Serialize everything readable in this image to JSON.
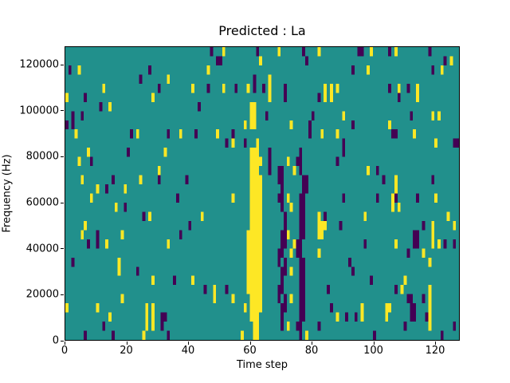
{
  "figure": {
    "background": "#ffffff"
  },
  "chart_data": {
    "type": "heatmap",
    "title": "Predicted : La",
    "xlabel": "Time step",
    "ylabel": "Frequency (Hz)",
    "x_ticks": [
      0,
      20,
      40,
      60,
      80,
      100,
      120
    ],
    "y_ticks": [
      0,
      20000,
      40000,
      60000,
      80000,
      100000,
      120000
    ],
    "x_range": [
      0,
      128
    ],
    "y_range": [
      0,
      128000
    ],
    "grid_cols": 128,
    "grid_rows": 32,
    "legend": "none",
    "grid_lines": false,
    "colors": {
      "background_value": "#21908c",
      "positive_value": "#fde725",
      "negative_value": "#440154",
      "axis": "#000000"
    },
    "yellow_cells_by_row_from_top": [
      [
        51,
        69,
        82,
        99,
        107
      ],
      [
        63,
        125
      ],
      [
        4,
        46,
        98,
        122
      ],
      [
        33,
        66
      ],
      [
        12,
        41,
        51,
        59,
        66,
        84,
        86,
        88,
        108,
        114
      ],
      [
        0,
        28,
        66,
        84,
        86,
        114
      ],
      [
        14,
        60,
        61
      ],
      [
        60,
        61,
        90,
        119,
        121
      ],
      [
        58,
        60,
        61,
        73,
        105
      ],
      [
        3,
        23,
        37,
        49,
        83,
        88,
        113
      ],
      [
        54,
        62,
        120
      ],
      [
        7,
        32,
        60,
        61,
        62
      ],
      [
        4,
        60,
        61,
        62,
        63,
        72
      ],
      [
        30,
        60,
        61,
        62,
        74,
        98
      ],
      [
        5,
        24,
        60,
        61,
        62,
        63,
        107
      ],
      [
        10,
        19,
        60,
        61,
        62,
        63,
        107
      ],
      [
        8,
        54,
        60,
        61,
        62,
        63,
        72,
        106,
        120
      ],
      [
        16,
        60,
        61,
        62,
        63,
        73,
        106,
        108
      ],
      [
        27,
        44,
        60,
        61,
        62,
        63,
        82,
        97,
        124
      ],
      [
        6,
        60,
        61,
        62,
        63,
        82,
        83,
        84,
        119,
        126
      ],
      [
        5,
        18,
        59,
        60,
        61,
        62,
        63,
        72,
        82,
        83,
        119
      ],
      [
        13,
        33,
        59,
        60,
        61,
        62,
        63,
        74,
        107,
        119,
        121
      ],
      [
        59,
        60,
        61,
        62,
        63,
        73,
        82,
        116
      ],
      [
        17,
        59,
        60,
        61,
        62,
        63,
        118
      ],
      [
        17,
        59,
        60,
        61,
        62,
        63,
        73
      ],
      [
        28,
        41,
        59,
        60,
        61,
        62,
        63,
        110
      ],
      [
        48,
        59,
        60,
        61,
        62,
        63,
        109,
        118
      ],
      [
        18,
        48,
        54,
        60,
        61,
        62,
        63,
        73,
        118
      ],
      [
        0,
        10,
        26,
        28,
        58,
        60,
        61,
        62,
        63,
        96,
        104,
        105,
        118
      ],
      [
        14,
        26,
        28,
        60,
        61,
        62,
        88,
        96,
        104,
        118
      ],
      [
        26,
        28,
        61,
        62,
        72,
        118
      ],
      [
        25,
        57,
        61,
        62,
        78
      ]
    ],
    "purple_cells_by_row_from_top": [
      [
        47,
        62,
        77,
        95,
        96,
        105,
        118
      ],
      [
        49,
        50,
        78,
        123
      ],
      [
        1,
        27,
        93,
        119
      ],
      [
        24,
        61
      ],
      [
        30,
        46,
        55,
        61,
        64,
        71,
        105,
        111
      ],
      [
        6,
        71,
        82,
        108
      ],
      [
        11,
        43
      ],
      [
        2,
        5,
        65,
        80,
        112
      ],
      [
        0,
        2,
        79,
        93
      ],
      [
        21,
        33,
        42,
        54,
        79,
        106,
        107
      ],
      [
        52,
        58,
        90,
        126,
        127
      ],
      [
        20,
        66,
        76,
        90
      ],
      [
        8,
        66,
        75,
        76,
        88
      ],
      [
        66,
        69,
        70,
        76,
        101
      ],
      [
        15,
        30,
        39,
        69,
        70,
        77,
        78,
        103,
        119
      ],
      [
        13,
        70,
        77,
        78
      ],
      [
        36,
        69,
        70,
        76,
        77,
        90,
        101,
        107,
        114
      ],
      [
        19,
        70,
        76,
        77
      ],
      [
        25,
        71,
        76,
        77,
        84
      ],
      [
        40,
        71,
        76,
        77,
        89,
        116
      ],
      [
        10,
        37,
        70,
        71,
        76,
        77,
        113,
        114
      ],
      [
        7,
        10,
        70,
        71,
        75,
        76,
        97,
        113,
        114,
        123,
        126
      ],
      [
        69,
        70,
        75,
        76,
        111
      ],
      [
        2,
        69,
        71,
        76,
        77,
        92
      ],
      [
        23,
        70,
        71,
        76,
        77,
        93
      ],
      [
        35,
        70,
        76,
        77,
        99
      ],
      [
        45,
        52,
        69,
        70,
        76,
        77,
        85,
        107
      ],
      [
        69,
        71,
        76,
        77,
        111,
        112,
        116
      ],
      [
        70,
        71,
        76,
        77,
        86,
        112,
        113
      ],
      [
        31,
        32,
        70,
        76,
        77,
        91,
        94,
        112,
        113,
        117
      ],
      [
        12,
        31,
        70,
        75,
        76,
        82,
        110,
        126
      ],
      [
        6,
        15,
        33,
        76,
        100,
        122
      ]
    ]
  }
}
